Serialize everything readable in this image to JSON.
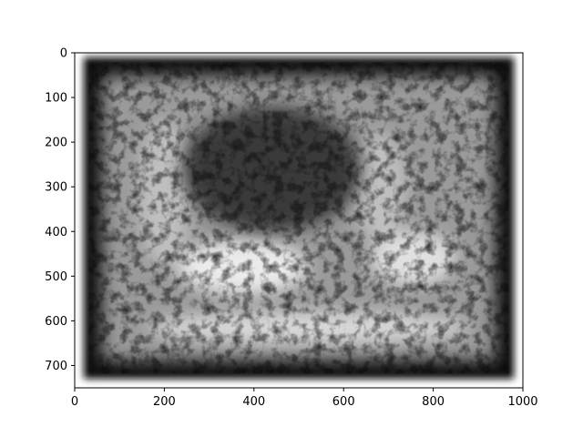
{
  "chart_data": {
    "type": "heatmap",
    "title": "",
    "xlabel": "",
    "ylabel": "",
    "colormap": "grayscale",
    "xlim": [
      0,
      1000
    ],
    "ylim": [
      750,
      0
    ],
    "y_axis_inverted": true,
    "grid": false,
    "legend": "none",
    "x_ticks": [
      0,
      200,
      400,
      600,
      800,
      1000
    ],
    "x_tick_labels": [
      "0",
      "200",
      "400",
      "600",
      "800",
      "1000"
    ],
    "y_ticks": [
      0,
      100,
      200,
      300,
      400,
      500,
      600,
      700
    ],
    "y_tick_labels": [
      "0",
      "100",
      "200",
      "300",
      "400",
      "500",
      "600",
      "700"
    ],
    "image_extent": {
      "x": [
        20,
        980
      ],
      "y": [
        10,
        730
      ]
    },
    "description_regions": [
      {
        "name": "dark-frame",
        "value": 0.05
      },
      {
        "name": "textured-interior",
        "value": 0.45
      },
      {
        "name": "bright-left-lobe",
        "x": [
          230,
          520
        ],
        "y": [
          420,
          540
        ],
        "value": 0.92
      },
      {
        "name": "bright-right-lobe",
        "x": [
          660,
          850
        ],
        "y": [
          400,
          520
        ],
        "value": 0.88
      },
      {
        "name": "bright-left-arm",
        "x": [
          140,
          260
        ],
        "y": [
          150,
          480
        ],
        "value": 0.75
      },
      {
        "name": "bright-right-arm",
        "x": [
          620,
          740
        ],
        "y": [
          180,
          420
        ],
        "value": 0.75
      },
      {
        "name": "bright-bottom-band",
        "x": [
          160,
          880
        ],
        "y": [
          580,
          650
        ],
        "value": 0.85
      }
    ],
    "colors": {
      "dark": "#0a0a0a",
      "light": "#f2f2f2",
      "mid": "#7a7a7a"
    }
  }
}
